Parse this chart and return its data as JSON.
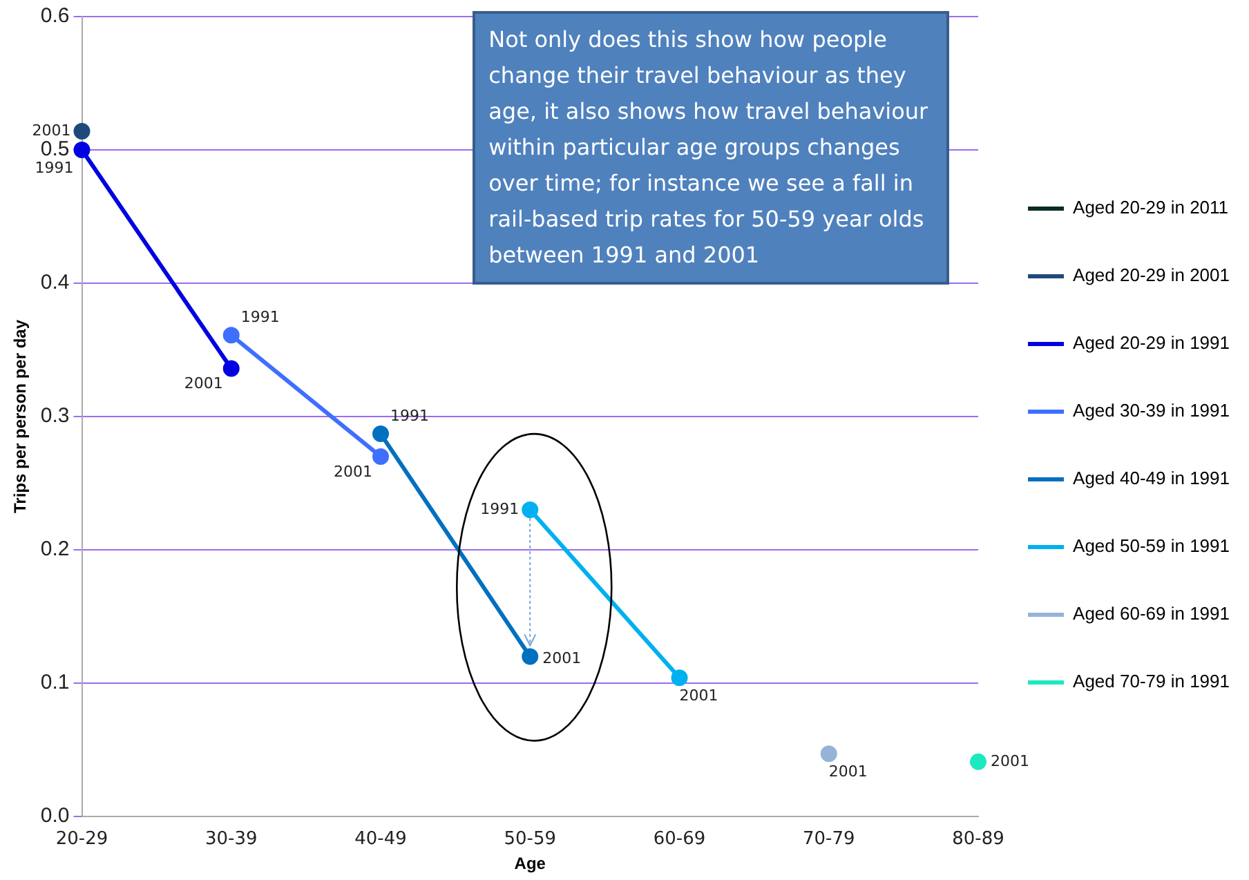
{
  "chart_data": {
    "type": "line",
    "xlabel": "Age",
    "ylabel": "Trips per person per day",
    "categories": [
      "20-29",
      "30-39",
      "40-49",
      "50-59",
      "60-69",
      "70-79",
      "80-89"
    ],
    "ylim": [
      0,
      0.6
    ],
    "yticks": [
      {
        "value": 0,
        "label": "0.0"
      },
      0.1,
      0.2,
      0.3,
      0.4,
      0.5,
      0.6
    ],
    "grid": "y",
    "legend": "right",
    "marker": "circle",
    "line_style": "solid",
    "annotations": [
      "Not only does this show how people change their travel behaviour as they age, it also shows how travel behaviour within particular age groups changes over time; for instance we see a fall in rail-based trip rates for 50-59 year olds between 1991 and 2001",
      {
        "text": "2001",
        "x": "20-29",
        "y": 0.514
      },
      {
        "text": "1991",
        "x": "20-29",
        "y": 0.5
      },
      {
        "text": "2001",
        "x": "30-39",
        "y": 0.336
      },
      {
        "text": "1991",
        "x": "30-39",
        "y": 0.361
      },
      {
        "text": "2001",
        "x": "40-49",
        "y": 0.27
      },
      {
        "text": "1991",
        "x": "40-49",
        "y": 0.287
      },
      {
        "text": "2001",
        "x": "50-59",
        "y": 0.12
      },
      {
        "text": "1991",
        "x": "50-59",
        "y": 0.23
      },
      {
        "text": "2001",
        "x": "60-69",
        "y": 0.104
      },
      {
        "text": "2001",
        "x": "70-79",
        "y": 0.047
      },
      {
        "text": "2001",
        "x": "80-89",
        "y": 0.041
      }
    ],
    "series": [
      {
        "name": "Aged 20-29 in 2011",
        "color": "#0b2b26",
        "values": [
          null,
          null,
          null,
          null,
          null,
          null,
          null
        ]
      },
      {
        "name": "Aged 20-29 in 2001",
        "color": "#1f497d",
        "values": [
          0.514,
          null,
          null,
          null,
          null,
          null,
          null
        ]
      },
      {
        "name": "Aged 20-29 in 1991",
        "color": "#0000e0",
        "values": [
          0.5,
          0.336,
          null,
          null,
          null,
          null,
          null
        ]
      },
      {
        "name": "Aged 30-39 in 1991",
        "color": "#3f6fff",
        "values": [
          null,
          0.361,
          0.27,
          null,
          null,
          null,
          null
        ]
      },
      {
        "name": "Aged 40-49 in 1991",
        "color": "#0070c0",
        "values": [
          null,
          null,
          0.287,
          0.12,
          null,
          null,
          null
        ]
      },
      {
        "name": "Aged 50-59 in 1991",
        "color": "#00b0f0",
        "values": [
          null,
          null,
          null,
          0.23,
          0.104,
          null,
          null
        ]
      },
      {
        "name": "Aged 60-69 in 1991",
        "color": "#95b3d7",
        "values": [
          null,
          null,
          null,
          null,
          null,
          0.047,
          null
        ]
      },
      {
        "name": "Aged 70-79 in 1991",
        "color": "#1de9c0",
        "values": [
          null,
          null,
          null,
          null,
          null,
          null,
          0.041
        ]
      }
    ]
  }
}
